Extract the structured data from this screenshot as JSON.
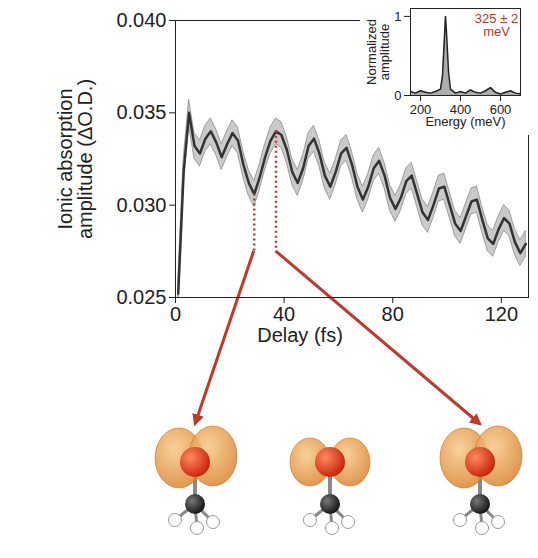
{
  "chart_data": [
    {
      "type": "line",
      "xlabel": "Delay (fs)",
      "ylabel": "Ionic absorption amplitude (ΔO.D.)",
      "color": "#333333",
      "x": [
        1,
        3,
        5,
        7,
        9,
        11,
        13,
        15,
        17,
        19,
        21,
        23,
        25,
        27,
        29,
        31,
        33,
        35,
        37,
        39,
        41,
        43,
        45,
        47,
        49,
        51,
        53,
        55,
        57,
        59,
        61,
        63,
        65,
        67,
        69,
        71,
        73,
        75,
        77,
        79,
        81,
        83,
        85,
        87,
        89,
        91,
        93,
        95,
        97,
        99,
        101,
        103,
        105,
        107,
        109,
        111,
        113,
        115,
        117,
        119,
        121,
        123,
        125,
        127,
        129
      ],
      "values": [
        0.0252,
        0.0318,
        0.035,
        0.0332,
        0.0328,
        0.0336,
        0.034,
        0.0334,
        0.0326,
        0.0333,
        0.0339,
        0.0335,
        0.0322,
        0.0312,
        0.0306,
        0.0315,
        0.0326,
        0.0335,
        0.034,
        0.0338,
        0.033,
        0.0318,
        0.0312,
        0.032,
        0.0332,
        0.0336,
        0.0328,
        0.0316,
        0.031,
        0.0318,
        0.0328,
        0.0331,
        0.0322,
        0.031,
        0.0303,
        0.031,
        0.032,
        0.0324,
        0.0316,
        0.0304,
        0.0298,
        0.0304,
        0.0313,
        0.0316,
        0.0306,
        0.0296,
        0.0292,
        0.03,
        0.0309,
        0.031,
        0.03,
        0.029,
        0.0286,
        0.0294,
        0.0302,
        0.0303,
        0.0292,
        0.0282,
        0.0279,
        0.0287,
        0.0293,
        0.029,
        0.028,
        0.0274,
        0.0279
      ],
      "error": [
        0.0007,
        0.0007,
        0.0007,
        0.0007,
        0.0007,
        0.0007,
        0.0007,
        0.0007,
        0.0007,
        0.0007,
        0.0007,
        0.0007,
        0.0007,
        0.0007,
        0.0007,
        0.0007,
        0.0007,
        0.0007,
        0.0007,
        0.0007,
        0.0007,
        0.0007,
        0.0007,
        0.0007,
        0.0007,
        0.0007,
        0.0007,
        0.0007,
        0.0007,
        0.0007,
        0.0007,
        0.0007,
        0.0007,
        0.0007,
        0.0007,
        0.0007,
        0.0007,
        0.0007,
        0.0007,
        0.0007,
        0.0007,
        0.0007,
        0.0007,
        0.0007,
        0.0007,
        0.0007,
        0.0007,
        0.0007,
        0.0007,
        0.0007,
        0.0007,
        0.0007,
        0.0007,
        0.0007,
        0.0007,
        0.0007,
        0.0007,
        0.0007,
        0.0007,
        0.0007,
        0.0007,
        0.0007,
        0.0007,
        0.0007,
        0.0007
      ],
      "xlim": [
        0,
        130
      ],
      "ylim": [
        0.025,
        0.04
      ],
      "xticks": [
        0,
        40,
        80,
        120
      ],
      "yticks": [
        0.025,
        {
          "value": 0.03,
          "label": "0.030"
        },
        0.035,
        {
          "value": 0.04,
          "label": "0.040"
        }
      ],
      "highlight": {
        "x": [
          29,
          37
        ],
        "y_bottom": 0.0275,
        "color": "#c0392b"
      }
    },
    {
      "type": "area",
      "xlabel": "Energy (meV)",
      "ylabel": "Normalized amplitude",
      "color": "#999999",
      "x": [
        150,
        175,
        200,
        225,
        250,
        275,
        300,
        310,
        320,
        325,
        330,
        340,
        350,
        375,
        400,
        425,
        450,
        475,
        500,
        525,
        550,
        575,
        600,
        625,
        650,
        675,
        700
      ],
      "values": [
        0.05,
        0.03,
        0.06,
        0.04,
        0.03,
        0.05,
        0.08,
        0.25,
        0.75,
        1.0,
        0.8,
        0.3,
        0.08,
        0.03,
        0.05,
        0.03,
        0.07,
        0.04,
        0.03,
        0.06,
        0.1,
        0.04,
        0.02,
        0.04,
        0.06,
        0.03,
        0.02
      ],
      "xlim": [
        150,
        700
      ],
      "ylim": [
        0,
        1.1
      ],
      "xticks": [
        200,
        400,
        600
      ],
      "yticks": [
        0,
        1
      ],
      "annotation": {
        "text": "325 ± 2 meV",
        "color": "#b03a2e"
      }
    }
  ]
}
